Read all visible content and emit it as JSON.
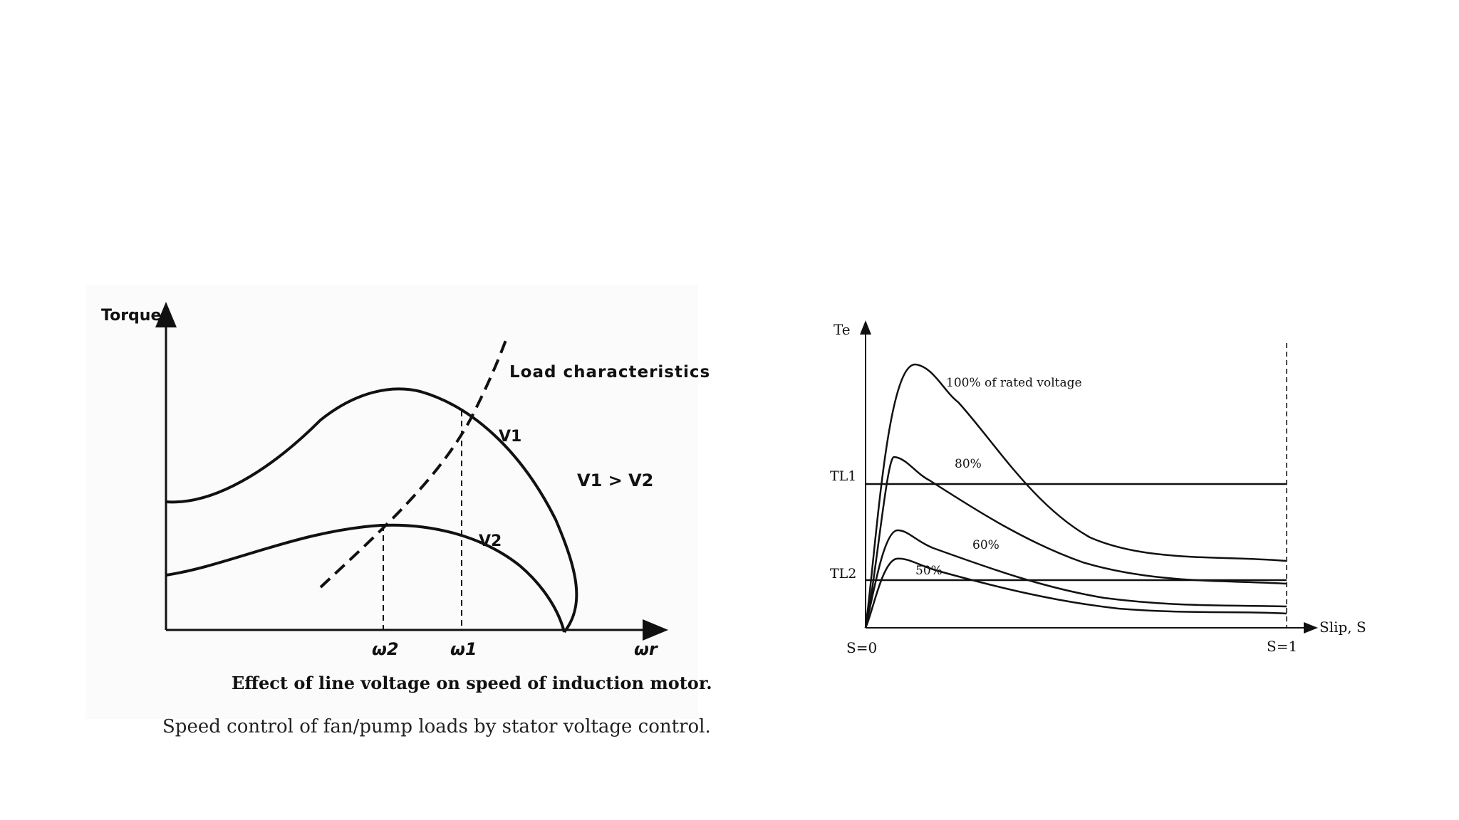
{
  "left_diagram": {
    "y_axis_label": "Torque",
    "x_axis_label": "ωr",
    "load_label": "Load characteristics",
    "curve_v1_label": "V1",
    "curve_v2_label": "V2",
    "relation_label": "V1 > V2",
    "tick_w2": "ω2",
    "tick_w1": "ω1",
    "title": "Effect of line voltage on speed of induction motor."
  },
  "right_diagram": {
    "y_axis_label": "Te",
    "x_axis_label": "Slip, S",
    "tl1_label": "TL1",
    "tl2_label": "TL2",
    "s0_label": "S=0",
    "s1_label": "S=1",
    "curves": [
      {
        "label": "100% of rated voltage"
      },
      {
        "label": "80%"
      },
      {
        "label": "60%"
      },
      {
        "label": "50%"
      }
    ]
  },
  "caption": "Speed control of fan/pump loads by stator voltage control."
}
